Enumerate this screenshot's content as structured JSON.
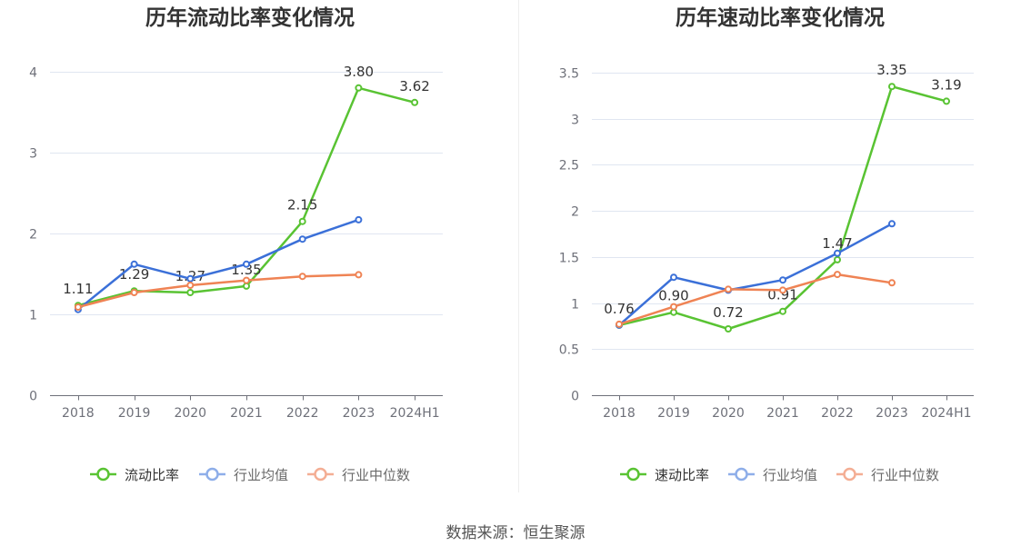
{
  "footer": {
    "source": "数据来源：恒生聚源"
  },
  "chart_data": [
    {
      "type": "line",
      "title": "历年流动比率变化情况",
      "categories": [
        "2018",
        "2019",
        "2020",
        "2021",
        "2022",
        "2023",
        "2024H1"
      ],
      "yticks": [
        0,
        1,
        2,
        3,
        4
      ],
      "ylim": [
        0,
        4
      ],
      "grid": true,
      "legend": "bottom",
      "series": [
        {
          "name": "流动比率",
          "color": "#59c333",
          "legend_color": "#59c333",
          "values": [
            1.11,
            1.29,
            1.27,
            1.35,
            2.15,
            3.8,
            3.62
          ],
          "data_labels": [
            "1.11",
            "1.29",
            "1.27",
            "1.35",
            "2.15",
            "3.80",
            "3.62"
          ]
        },
        {
          "name": "行业均值",
          "color": "#3b70d8",
          "legend_color": "#8eaee9",
          "values": [
            1.06,
            1.62,
            1.44,
            1.62,
            1.93,
            2.17,
            null
          ]
        },
        {
          "name": "行业中位数",
          "color": "#ef8354",
          "legend_color": "#f4ae94",
          "values": [
            1.09,
            1.27,
            1.36,
            1.42,
            1.47,
            1.49,
            null
          ]
        }
      ]
    },
    {
      "type": "line",
      "title": "历年速动比率变化情况",
      "categories": [
        "2018",
        "2019",
        "2020",
        "2021",
        "2022",
        "2023",
        "2024H1"
      ],
      "yticks": [
        0,
        0.5,
        1,
        1.5,
        2,
        2.5,
        3,
        3.5
      ],
      "ylim": [
        0,
        3.5
      ],
      "grid": true,
      "legend": "bottom",
      "series": [
        {
          "name": "速动比率",
          "color": "#59c333",
          "legend_color": "#59c333",
          "values": [
            0.76,
            0.9,
            0.72,
            0.91,
            1.47,
            3.35,
            3.19
          ],
          "data_labels": [
            "0.76",
            "0.90",
            "0.72",
            "0.91",
            "1.47",
            "3.35",
            "3.19"
          ]
        },
        {
          "name": "行业均值",
          "color": "#3b70d8",
          "legend_color": "#8eaee9",
          "values": [
            0.76,
            1.28,
            1.14,
            1.25,
            1.54,
            1.86,
            null
          ]
        },
        {
          "name": "行业中位数",
          "color": "#ef8354",
          "legend_color": "#f4ae94",
          "values": [
            0.77,
            0.96,
            1.15,
            1.14,
            1.31,
            1.22,
            null
          ]
        }
      ]
    }
  ]
}
